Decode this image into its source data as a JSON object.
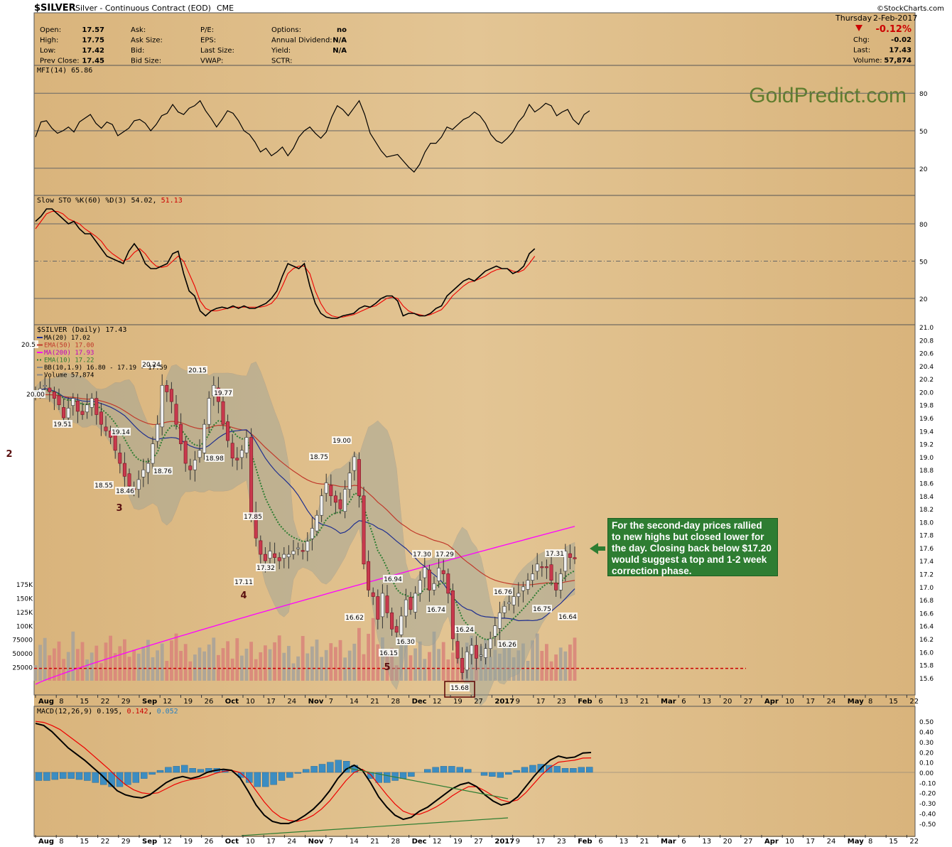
{
  "header": {
    "symbol": "$SILVER",
    "name": "Silver - Continuous Contract (EOD)",
    "exchange": "CME",
    "day": "Thursday",
    "date": "2-Feb-2017",
    "change_pct": "-0.12%",
    "brand": "©StockCharts.com",
    "quote_left": [
      {
        "label": "Open:",
        "value": "17.57"
      },
      {
        "label": "High:",
        "value": "17.75"
      },
      {
        "label": "Low:",
        "value": "17.42"
      },
      {
        "label": "Prev Close:",
        "value": "17.45"
      }
    ],
    "quote_mid": [
      "Ask:",
      "Ask Size:",
      "Bid:",
      "Bid Size:"
    ],
    "quote_mid2": [
      "P/E:",
      "EPS:",
      "Last Size:",
      "VWAP:"
    ],
    "quote_right": [
      {
        "label": "Options:",
        "value": "no"
      },
      {
        "label": "Annual Dividend:",
        "value": "N/A"
      },
      {
        "label": "Yield:",
        "value": "N/A"
      },
      {
        "label": "SCTR:",
        "value": ""
      }
    ],
    "quote_far": [
      {
        "label": "Chg:",
        "value": "-0.02"
      },
      {
        "label": "Last:",
        "value": "17.43"
      },
      {
        "label": "Volume:",
        "value": "57,874"
      }
    ]
  },
  "watermark": "GoldPredict.com",
  "annotation": "For the second-day prices rallied to new highs but closed lower for the day. Closing back below $17.20 would suggest a top and 1-2 week correction phase.",
  "colors": {
    "panel_bg": "#d9b47c",
    "up": "#f0f0f0",
    "down": "#c8394d",
    "ma20": "#1f2f8f",
    "ema50": "#c0392b",
    "ma200": "#ff00ff",
    "ema10": "#2e7d32",
    "accent_red": "#cc0000"
  },
  "chart_data": [
    {
      "type": "line",
      "title": "MFI(14) 65.86",
      "ylim": [
        0,
        100
      ],
      "yticks": [
        "80",
        "50",
        "20"
      ],
      "series": [
        {
          "name": "MFI(14)",
          "values": [
            45,
            57,
            58,
            52,
            48,
            50,
            53,
            49,
            57,
            60,
            63,
            56,
            52,
            57,
            55,
            46,
            49,
            52,
            58,
            59,
            56,
            50,
            55,
            62,
            64,
            71,
            65,
            63,
            68,
            70,
            74,
            66,
            60,
            53,
            59,
            66,
            64,
            58,
            50,
            47,
            41,
            33,
            36,
            30,
            33,
            37,
            30,
            36,
            45,
            50,
            53,
            48,
            44,
            49,
            61,
            70,
            67,
            62,
            68,
            74,
            63,
            48,
            41,
            34,
            29,
            30,
            31,
            26,
            21,
            17,
            23,
            33,
            40,
            40,
            45,
            53,
            51,
            55,
            59,
            61,
            65,
            62,
            56,
            47,
            42,
            40,
            44,
            49,
            57,
            62,
            71,
            65,
            68,
            72,
            70,
            62,
            65,
            67,
            59,
            55,
            63,
            66
          ]
        }
      ]
    },
    {
      "type": "line",
      "title": "Slow STO %K(60) %D(3) 54.02, 51.13",
      "ylim": [
        0,
        100
      ],
      "yticks": [
        "80",
        "50",
        "20"
      ],
      "series": [
        {
          "name": "%K(60)",
          "values": [
            82,
            86,
            92,
            92,
            88,
            84,
            80,
            82,
            76,
            72,
            72,
            66,
            60,
            54,
            52,
            50,
            48,
            58,
            64,
            58,
            48,
            44,
            44,
            46,
            48,
            56,
            58,
            40,
            26,
            22,
            10,
            6,
            10,
            12,
            13,
            12,
            14,
            12,
            14,
            12,
            12,
            14,
            16,
            20,
            26,
            38,
            48,
            46,
            44,
            48,
            30,
            16,
            8,
            5,
            4,
            4,
            6,
            7,
            8,
            12,
            14,
            13,
            16,
            20,
            22,
            22,
            18,
            6,
            8,
            8,
            6,
            6,
            8,
            12,
            14,
            22,
            26,
            30,
            34,
            36,
            34,
            38,
            42,
            44,
            46,
            44,
            44,
            40,
            42,
            46,
            56,
            60
          ]
        },
        {
          "name": "%D(3)",
          "values": [
            76,
            82,
            88,
            90,
            90,
            88,
            84,
            82,
            80,
            76,
            73,
            70,
            66,
            60,
            56,
            53,
            50,
            52,
            57,
            60,
            56,
            50,
            46,
            45,
            46,
            50,
            54,
            50,
            40,
            30,
            18,
            12,
            10,
            10,
            11,
            12,
            13,
            13,
            13,
            13,
            13,
            13,
            14,
            16,
            21,
            30,
            40,
            44,
            46,
            46,
            40,
            26,
            16,
            9,
            6,
            5,
            5,
            6,
            7,
            9,
            11,
            13,
            14,
            17,
            20,
            21,
            20,
            14,
            10,
            8,
            7,
            6,
            7,
            9,
            11,
            16,
            22,
            26,
            30,
            33,
            34,
            36,
            38,
            41,
            43,
            44,
            44,
            42,
            41,
            43,
            48,
            54
          ]
        }
      ]
    },
    {
      "type": "candlestick",
      "title": "$SILVER (Daily) 17.43",
      "ylim": [
        15.5,
        21.0
      ],
      "yticks": [
        "21.0",
        "20.8",
        "20.6",
        "20.4",
        "20.2",
        "20.0",
        "19.8",
        "19.6",
        "19.4",
        "19.2",
        "19.0",
        "18.8",
        "18.6",
        "18.4",
        "18.2",
        "18.0",
        "17.8",
        "17.6",
        "17.4",
        "17.2",
        "17.0",
        "16.8",
        "16.6",
        "16.4",
        "16.2",
        "16.0",
        "15.8",
        "15.6"
      ],
      "legend": [
        "MA(20) 17.02",
        "EMA(50) 17.00",
        "MA(200) 17.93",
        "EMA(10) 17.22",
        "BB(10,1.9) 16.80 - 17.19 - 17.59",
        "Volume 57,874"
      ],
      "x_ticks": [
        "Aug",
        "8",
        "15",
        "22",
        "29",
        "Sep",
        "12",
        "19",
        "26",
        "Oct",
        "10",
        "17",
        "24",
        "Nov",
        "7",
        "14",
        "21",
        "28",
        "Dec",
        "12",
        "19",
        "27",
        "2017",
        "9",
        "17",
        "23",
        "Feb",
        "6",
        "13",
        "21",
        "Mar",
        "6",
        "13",
        "20",
        "27",
        "Apr",
        "10",
        "17",
        "24",
        "May",
        "8",
        "15",
        "22"
      ],
      "closes": [
        20.0,
        20.05,
        20.1,
        20.0,
        19.9,
        19.8,
        19.6,
        19.75,
        19.9,
        19.7,
        19.65,
        19.8,
        19.9,
        19.65,
        19.5,
        19.4,
        19.3,
        19.1,
        18.9,
        18.7,
        18.55,
        18.5,
        18.65,
        18.8,
        18.9,
        19.2,
        19.5,
        20.1,
        20.0,
        19.85,
        19.5,
        19.2,
        18.9,
        18.8,
        18.95,
        19.1,
        19.5,
        19.9,
        20.1,
        19.85,
        19.5,
        19.25,
        18.98,
        18.95,
        19.1,
        19.3,
        18.1,
        17.75,
        17.5,
        17.4,
        17.55,
        17.45,
        17.4,
        17.5,
        17.5,
        17.55,
        17.6,
        17.55,
        17.7,
        17.9,
        18.1,
        18.4,
        18.6,
        18.4,
        18.3,
        18.2,
        18.5,
        18.75,
        19.0,
        18.4,
        17.35,
        16.95,
        16.85,
        16.5,
        16.9,
        16.6,
        16.35,
        16.3,
        16.55,
        16.8,
        16.65,
        16.9,
        17.1,
        17.3,
        16.95,
        17.05,
        17.29,
        17.2,
        16.9,
        16.2,
        15.9,
        15.68,
        16.0,
        16.1,
        15.9,
        15.95,
        16.05,
        16.2,
        16.4,
        16.6,
        16.7,
        16.76,
        16.85,
        16.9,
        17.0,
        17.1,
        17.2,
        17.35,
        17.31,
        17.3,
        17.1,
        16.95,
        17.2,
        17.55,
        17.45,
        17.43
      ],
      "labels": [
        {
          "text": "20.00"
        },
        {
          "text": "19.51"
        },
        {
          "text": "20.24"
        },
        {
          "text": "19.14"
        },
        {
          "text": "18.55"
        },
        {
          "text": "18.46"
        },
        {
          "text": "18.76"
        },
        {
          "text": "20.15"
        },
        {
          "text": "18.98"
        },
        {
          "text": "19.77"
        },
        {
          "text": "17.85"
        },
        {
          "text": "17.11"
        },
        {
          "text": "17.32"
        },
        {
          "text": "18.75"
        },
        {
          "text": "19.00"
        },
        {
          "text": "16.62"
        },
        {
          "text": "16.94"
        },
        {
          "text": "16.15"
        },
        {
          "text": "16.30"
        },
        {
          "text": "17.30"
        },
        {
          "text": "17.29"
        },
        {
          "text": "16.74"
        },
        {
          "text": "16.24"
        },
        {
          "text": "15.68"
        },
        {
          "text": "16.26"
        },
        {
          "text": "16.76"
        },
        {
          "text": "16.75"
        },
        {
          "text": "17.31"
        },
        {
          "text": "16.64"
        },
        {
          "text": "20.5"
        }
      ],
      "wave_labels": [
        "2",
        "3",
        "4",
        "5"
      ],
      "volume": {
        "yticks": [
          "175K",
          "150K",
          "125K",
          "100K",
          "75000",
          "50000",
          "25000"
        ],
        "ref_line": 25000
      },
      "ma200_range": [
        16.9,
        17.93
      ]
    },
    {
      "type": "line",
      "title": "MACD(12,26,9) 0.195, 0.142, 0.052",
      "ylim": [
        -0.55,
        0.55
      ],
      "yticks": [
        "0.50",
        "0.40",
        "0.30",
        "0.20",
        "0.10",
        "0.00",
        "-0.10",
        "-0.20",
        "-0.30",
        "-0.40",
        "-0.50"
      ],
      "series": [
        {
          "name": "MACD(12,26,9)",
          "values": [
            0.48,
            0.46,
            0.4,
            0.32,
            0.24,
            0.18,
            0.12,
            0.05,
            -0.02,
            -0.1,
            -0.18,
            -0.22,
            -0.24,
            -0.25,
            -0.22,
            -0.16,
            -0.1,
            -0.06,
            -0.04,
            -0.06,
            -0.04,
            0.0,
            0.02,
            0.03,
            0.02,
            -0.05,
            -0.18,
            -0.32,
            -0.42,
            -0.48,
            -0.5,
            -0.5,
            -0.47,
            -0.42,
            -0.36,
            -0.28,
            -0.18,
            -0.06,
            0.03,
            0.07,
            0.02,
            -0.1,
            -0.24,
            -0.34,
            -0.42,
            -0.46,
            -0.44,
            -0.38,
            -0.34,
            -0.28,
            -0.22,
            -0.16,
            -0.12,
            -0.1,
            -0.14,
            -0.22,
            -0.28,
            -0.32,
            -0.3,
            -0.24,
            -0.14,
            -0.04,
            0.05,
            0.12,
            0.16,
            0.14,
            0.15,
            0.19,
            0.195
          ]
        },
        {
          "name": "signal",
          "values": [
            0.5,
            0.49,
            0.46,
            0.42,
            0.36,
            0.3,
            0.24,
            0.17,
            0.1,
            0.03,
            -0.05,
            -0.12,
            -0.17,
            -0.2,
            -0.21,
            -0.2,
            -0.16,
            -0.12,
            -0.09,
            -0.07,
            -0.06,
            -0.04,
            -0.01,
            0.01,
            0.02,
            0.0,
            -0.07,
            -0.18,
            -0.29,
            -0.38,
            -0.44,
            -0.47,
            -0.48,
            -0.46,
            -0.42,
            -0.36,
            -0.28,
            -0.18,
            -0.08,
            0.0,
            0.03,
            -0.02,
            -0.12,
            -0.22,
            -0.31,
            -0.38,
            -0.41,
            -0.41,
            -0.38,
            -0.34,
            -0.29,
            -0.23,
            -0.18,
            -0.14,
            -0.14,
            -0.18,
            -0.23,
            -0.27,
            -0.29,
            -0.27,
            -0.2,
            -0.11,
            -0.02,
            0.05,
            0.1,
            0.11,
            0.12,
            0.14,
            0.142
          ]
        }
      ],
      "histogram": [
        -0.08,
        -0.08,
        -0.07,
        -0.06,
        -0.06,
        -0.07,
        -0.08,
        -0.1,
        -0.12,
        -0.14,
        -0.14,
        -0.12,
        -0.1,
        -0.06,
        -0.02,
        0.02,
        0.05,
        0.06,
        0.07,
        0.04,
        0.03,
        0.04,
        0.04,
        0.03,
        0.0,
        -0.05,
        -0.1,
        -0.14,
        -0.14,
        -0.12,
        -0.08,
        -0.05,
        -0.01,
        0.03,
        0.06,
        0.08,
        0.1,
        0.12,
        0.11,
        0.07,
        0.0,
        -0.06,
        -0.1,
        -0.1,
        -0.08,
        -0.06,
        -0.04,
        0.0,
        0.03,
        0.05,
        0.06,
        0.06,
        0.05,
        0.03,
        0.0,
        -0.03,
        -0.04,
        -0.05,
        -0.02,
        0.02,
        0.05,
        0.07,
        0.08,
        0.07,
        0.06,
        0.04,
        0.04,
        0.05,
        0.052
      ]
    }
  ]
}
